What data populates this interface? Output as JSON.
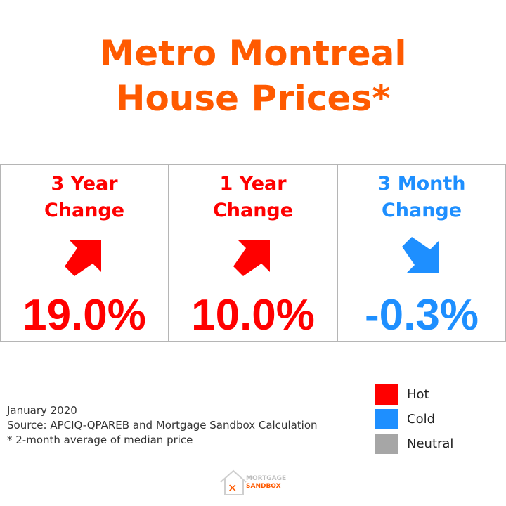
{
  "title": {
    "line1": "Metro Montreal",
    "line2": "House Prices*",
    "color": "#ff5a00"
  },
  "panels": [
    {
      "label_line1": "3 Year",
      "label_line2": "Change",
      "value": "19.0%",
      "direction": "up",
      "color": "#ff0000",
      "arrow_icon": "arrow-up-right-icon"
    },
    {
      "label_line1": "1 Year",
      "label_line2": "Change",
      "value": "10.0%",
      "direction": "up",
      "color": "#ff0000",
      "arrow_icon": "arrow-up-right-icon"
    },
    {
      "label_line1": "3 Month",
      "label_line2": "Change",
      "value": "-0.3%",
      "direction": "down",
      "color": "#1e8fff",
      "arrow_icon": "arrow-down-right-icon"
    }
  ],
  "footnote": {
    "date": "January 2020",
    "source": "Source: APCIQ-QPAREB  and Mortgage Sandbox Calculation",
    "note": "* 2-month average of median price"
  },
  "legend": [
    {
      "label": "Hot",
      "color": "#ff0000"
    },
    {
      "label": "Cold",
      "color": "#1e8fff"
    },
    {
      "label": "Neutral",
      "color": "#a6a6a6"
    }
  ],
  "logo": {
    "line1": "MORTGAGE",
    "line2": "SANDBOX",
    "color": "#ff5a00"
  }
}
